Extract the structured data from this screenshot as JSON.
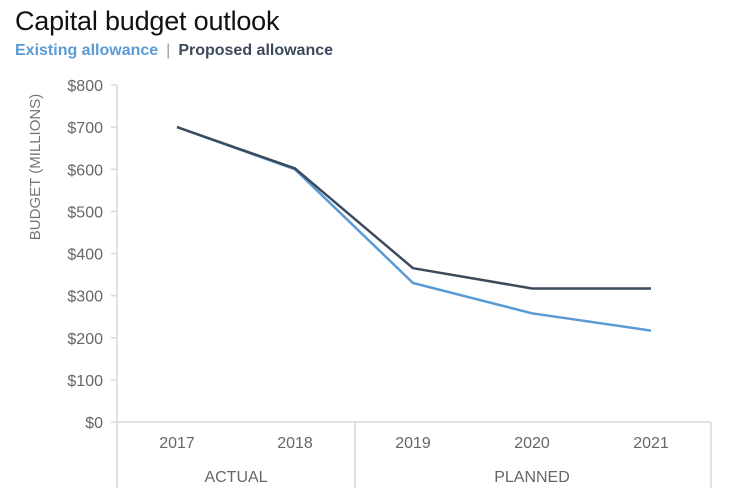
{
  "chart_data": {
    "type": "line",
    "title": "Capital budget outlook",
    "legend": [
      {
        "name": "Existing allowance",
        "color": "#5b9bd5"
      },
      {
        "name": "Proposed allowance",
        "color": "#3d4a5c"
      }
    ],
    "legend_separator": "|",
    "ylabel": "BUDGET (MILLIONS)",
    "xlabel": "",
    "ylim": [
      0,
      800
    ],
    "yticks": [
      0,
      100,
      200,
      300,
      400,
      500,
      600,
      700,
      800
    ],
    "ytick_labels": [
      "$0",
      "$100",
      "$200",
      "$300",
      "$400",
      "$500",
      "$600",
      "$700",
      "$800"
    ],
    "categories": [
      "2017",
      "2018",
      "2019",
      "2020",
      "2021"
    ],
    "groups": [
      {
        "label": "ACTUAL",
        "categories": [
          "2017",
          "2018"
        ]
      },
      {
        "label": "PLANNED",
        "categories": [
          "2019",
          "2020",
          "2021"
        ]
      }
    ],
    "series": [
      {
        "name": "Existing allowance",
        "color": "#5b9bd5",
        "values": [
          700,
          600,
          330,
          258,
          217
        ]
      },
      {
        "name": "Proposed allowance",
        "color": "#3d4a5c",
        "values": [
          700,
          602,
          365,
          317,
          317
        ]
      }
    ],
    "grid": false
  }
}
